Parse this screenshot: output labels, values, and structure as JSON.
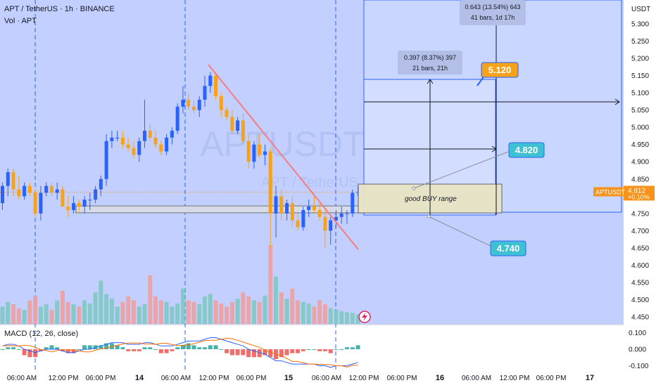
{
  "header": {
    "symbol_line": "APT / TetherUS · 1h · BINANCE",
    "volume_label": "Vol · APT",
    "macd_label": "MACD (12, 26, close)"
  },
  "watermark": {
    "main": "APTUSDT, 1h",
    "sub": "APT / TetherUS"
  },
  "price_scale": {
    "currency": "USDT",
    "ticks": [
      "5.300",
      "5.250",
      "5.200",
      "5.150",
      "5.100",
      "5.050",
      "5.000",
      "4.950",
      "4.900",
      "4.850",
      "4.800",
      "4.750",
      "4.700",
      "4.650",
      "4.600",
      "4.550",
      "4.500",
      "4.450"
    ],
    "last_symbol": "APTUSDT",
    "last_price": "4.812",
    "last_change": "+0.10%"
  },
  "macd_scale": {
    "ticks": [
      "0.100",
      "0.000",
      "-0.100"
    ]
  },
  "time_scale": {
    "labels": [
      "06:00 AM",
      "12:00 PM",
      "06:00 PM",
      "14",
      "06:00 AM",
      "12:00 PM",
      "06:00 PM",
      "15",
      "06:00 AM",
      "12:00 PM",
      "06:00 PM",
      "16",
      "06:00 AM",
      "12:00 PM",
      "06:00 PM",
      "17"
    ]
  },
  "annotations": {
    "measure_top_line1": "0.643 (13.54%) 643",
    "measure_top_line2": "41 bars, 1d 17h",
    "measure_mid_line1": "0.397 (8.37%) 397",
    "measure_mid_line2": "21 bars, 21h",
    "target_high": "5.120",
    "target_mid": "4.820",
    "target_low": "4.740",
    "buy_range": "good BUY range"
  },
  "colors": {
    "up": "#26a69a",
    "down": "#ef5350",
    "candle_up": "#2962ff",
    "candle_down": "#f7a21b",
    "trendline": "#f77c80",
    "highlight": "#c9d6ff",
    "price_tag": "#f7931a",
    "target_tag": "#3ec1d3",
    "target_tag_high": "#f7a21b"
  },
  "chart_data": {
    "type": "candlestick",
    "ylim": [
      4.43,
      5.33
    ],
    "candles": [
      {
        "o": 4.78,
        "h": 4.84,
        "l": 4.76,
        "c": 4.83
      },
      {
        "o": 4.83,
        "h": 4.88,
        "l": 4.8,
        "c": 4.87
      },
      {
        "o": 4.87,
        "h": 4.88,
        "l": 4.8,
        "c": 4.82
      },
      {
        "o": 4.82,
        "h": 4.86,
        "l": 4.79,
        "c": 4.8
      },
      {
        "o": 4.8,
        "h": 4.84,
        "l": 4.79,
        "c": 4.83
      },
      {
        "o": 4.83,
        "h": 4.84,
        "l": 4.8,
        "c": 4.81
      },
      {
        "o": 4.81,
        "h": 4.82,
        "l": 4.74,
        "c": 4.75
      },
      {
        "o": 4.75,
        "h": 4.83,
        "l": 4.73,
        "c": 4.81
      },
      {
        "o": 4.81,
        "h": 4.84,
        "l": 4.8,
        "c": 4.83
      },
      {
        "o": 4.83,
        "h": 4.84,
        "l": 4.8,
        "c": 4.81
      },
      {
        "o": 4.81,
        "h": 4.84,
        "l": 4.79,
        "c": 4.82
      },
      {
        "o": 4.82,
        "h": 4.83,
        "l": 4.77,
        "c": 4.77
      },
      {
        "o": 4.77,
        "h": 4.8,
        "l": 4.74,
        "c": 4.76
      },
      {
        "o": 4.76,
        "h": 4.8,
        "l": 4.75,
        "c": 4.78
      },
      {
        "o": 4.78,
        "h": 4.79,
        "l": 4.75,
        "c": 4.77
      },
      {
        "o": 4.77,
        "h": 4.8,
        "l": 4.75,
        "c": 4.79
      },
      {
        "o": 4.79,
        "h": 4.81,
        "l": 4.76,
        "c": 4.79
      },
      {
        "o": 4.79,
        "h": 4.83,
        "l": 4.78,
        "c": 4.82
      },
      {
        "o": 4.82,
        "h": 4.86,
        "l": 4.8,
        "c": 4.85
      },
      {
        "o": 4.85,
        "h": 4.98,
        "l": 4.83,
        "c": 4.96
      },
      {
        "o": 4.96,
        "h": 4.99,
        "l": 4.94,
        "c": 4.97
      },
      {
        "o": 4.97,
        "h": 4.99,
        "l": 4.96,
        "c": 4.97
      },
      {
        "o": 4.97,
        "h": 4.99,
        "l": 4.94,
        "c": 4.95
      },
      {
        "o": 4.95,
        "h": 4.97,
        "l": 4.93,
        "c": 4.94
      },
      {
        "o": 4.94,
        "h": 4.96,
        "l": 4.91,
        "c": 4.92
      },
      {
        "o": 4.92,
        "h": 4.97,
        "l": 4.9,
        "c": 4.96
      },
      {
        "o": 4.96,
        "h": 5.08,
        "l": 4.94,
        "c": 4.99
      },
      {
        "o": 4.99,
        "h": 5.01,
        "l": 4.96,
        "c": 4.97
      },
      {
        "o": 4.97,
        "h": 4.99,
        "l": 4.94,
        "c": 4.95
      },
      {
        "o": 4.95,
        "h": 4.96,
        "l": 4.92,
        "c": 4.93
      },
      {
        "o": 4.93,
        "h": 4.98,
        "l": 4.92,
        "c": 4.97
      },
      {
        "o": 4.97,
        "h": 5.0,
        "l": 4.95,
        "c": 4.99
      },
      {
        "o": 4.99,
        "h": 5.07,
        "l": 4.98,
        "c": 5.06
      },
      {
        "o": 5.06,
        "h": 5.12,
        "l": 5.04,
        "c": 5.08
      },
      {
        "o": 5.08,
        "h": 5.1,
        "l": 5.05,
        "c": 5.06
      },
      {
        "o": 5.06,
        "h": 5.08,
        "l": 5.04,
        "c": 5.05
      },
      {
        "o": 5.05,
        "h": 5.09,
        "l": 5.03,
        "c": 5.08
      },
      {
        "o": 5.08,
        "h": 5.15,
        "l": 5.06,
        "c": 5.12
      },
      {
        "o": 5.12,
        "h": 5.16,
        "l": 5.1,
        "c": 5.15
      },
      {
        "o": 5.15,
        "h": 5.16,
        "l": 5.08,
        "c": 5.09
      },
      {
        "o": 5.09,
        "h": 5.1,
        "l": 5.03,
        "c": 5.05
      },
      {
        "o": 5.05,
        "h": 5.06,
        "l": 5.02,
        "c": 5.03
      },
      {
        "o": 5.03,
        "h": 5.05,
        "l": 4.98,
        "c": 4.99
      },
      {
        "o": 4.99,
        "h": 5.03,
        "l": 4.98,
        "c": 5.02
      },
      {
        "o": 5.02,
        "h": 5.04,
        "l": 4.95,
        "c": 4.96
      },
      {
        "o": 4.96,
        "h": 4.98,
        "l": 4.88,
        "c": 4.9
      },
      {
        "o": 4.9,
        "h": 4.96,
        "l": 4.88,
        "c": 4.95
      },
      {
        "o": 4.95,
        "h": 4.98,
        "l": 4.91,
        "c": 4.92
      },
      {
        "o": 4.92,
        "h": 4.95,
        "l": 4.89,
        "c": 4.93
      },
      {
        "o": 4.93,
        "h": 4.94,
        "l": 4.65,
        "c": 4.75
      },
      {
        "o": 4.75,
        "h": 4.83,
        "l": 4.68,
        "c": 4.8
      },
      {
        "o": 4.8,
        "h": 4.82,
        "l": 4.73,
        "c": 4.75
      },
      {
        "o": 4.75,
        "h": 4.79,
        "l": 4.73,
        "c": 4.78
      },
      {
        "o": 4.78,
        "h": 4.8,
        "l": 4.71,
        "c": 4.73
      },
      {
        "o": 4.73,
        "h": 4.75,
        "l": 4.7,
        "c": 4.71
      },
      {
        "o": 4.71,
        "h": 4.77,
        "l": 4.7,
        "c": 4.76
      },
      {
        "o": 4.76,
        "h": 4.79,
        "l": 4.74,
        "c": 4.77
      },
      {
        "o": 4.77,
        "h": 4.8,
        "l": 4.75,
        "c": 4.76
      },
      {
        "o": 4.76,
        "h": 4.78,
        "l": 4.73,
        "c": 4.74
      },
      {
        "o": 4.74,
        "h": 4.76,
        "l": 4.65,
        "c": 4.7
      },
      {
        "o": 4.7,
        "h": 4.74,
        "l": 4.66,
        "c": 4.73
      },
      {
        "o": 4.73,
        "h": 4.76,
        "l": 4.71,
        "c": 4.74
      },
      {
        "o": 4.74,
        "h": 4.77,
        "l": 4.72,
        "c": 4.75
      },
      {
        "o": 4.75,
        "h": 4.76,
        "l": 4.72,
        "c": 4.75
      },
      {
        "o": 4.75,
        "h": 4.82,
        "l": 4.74,
        "c": 4.81
      },
      {
        "o": 4.81,
        "h": 4.83,
        "l": 4.8,
        "c": 4.812
      }
    ],
    "volume": [
      0.22,
      0.28,
      0.25,
      0.2,
      0.18,
      0.3,
      0.35,
      0.22,
      0.25,
      0.18,
      0.3,
      0.42,
      0.28,
      0.25,
      0.22,
      0.3,
      0.26,
      0.4,
      0.55,
      0.38,
      0.32,
      0.22,
      0.28,
      0.35,
      0.3,
      0.22,
      0.25,
      0.62,
      0.35,
      0.3,
      0.28,
      0.22,
      0.26,
      0.45,
      0.3,
      0.28,
      0.25,
      0.35,
      0.38,
      0.3,
      0.26,
      0.22,
      0.28,
      0.32,
      0.4,
      0.35,
      0.3,
      0.28,
      0.36,
      1.0,
      0.6,
      0.4,
      0.32,
      0.45,
      0.3,
      0.28,
      0.26,
      0.22,
      0.3,
      0.25,
      0.2,
      0.18,
      0.16,
      0.15,
      0.14,
      0.12
    ],
    "macd": [
      0.02,
      0.03,
      0.03,
      0.02,
      0.0,
      -0.01,
      -0.02,
      -0.01,
      0.0,
      0.0,
      0.0,
      -0.01,
      -0.02,
      -0.02,
      -0.01,
      0.0,
      0.0,
      0.01,
      0.02,
      0.03,
      0.04,
      0.04,
      0.04,
      0.03,
      0.03,
      0.03,
      0.04,
      0.04,
      0.03,
      0.02,
      0.02,
      0.02,
      0.03,
      0.04,
      0.05,
      0.05,
      0.05,
      0.06,
      0.07,
      0.07,
      0.06,
      0.05,
      0.04,
      0.03,
      0.02,
      0.0,
      -0.01,
      -0.02,
      -0.03,
      -0.05,
      -0.07,
      -0.07,
      -0.08,
      -0.09,
      -0.09,
      -0.09,
      -0.09,
      -0.09,
      -0.1,
      -0.1,
      -0.11,
      -0.1,
      -0.1,
      -0.1,
      -0.09,
      -0.08
    ]
  }
}
